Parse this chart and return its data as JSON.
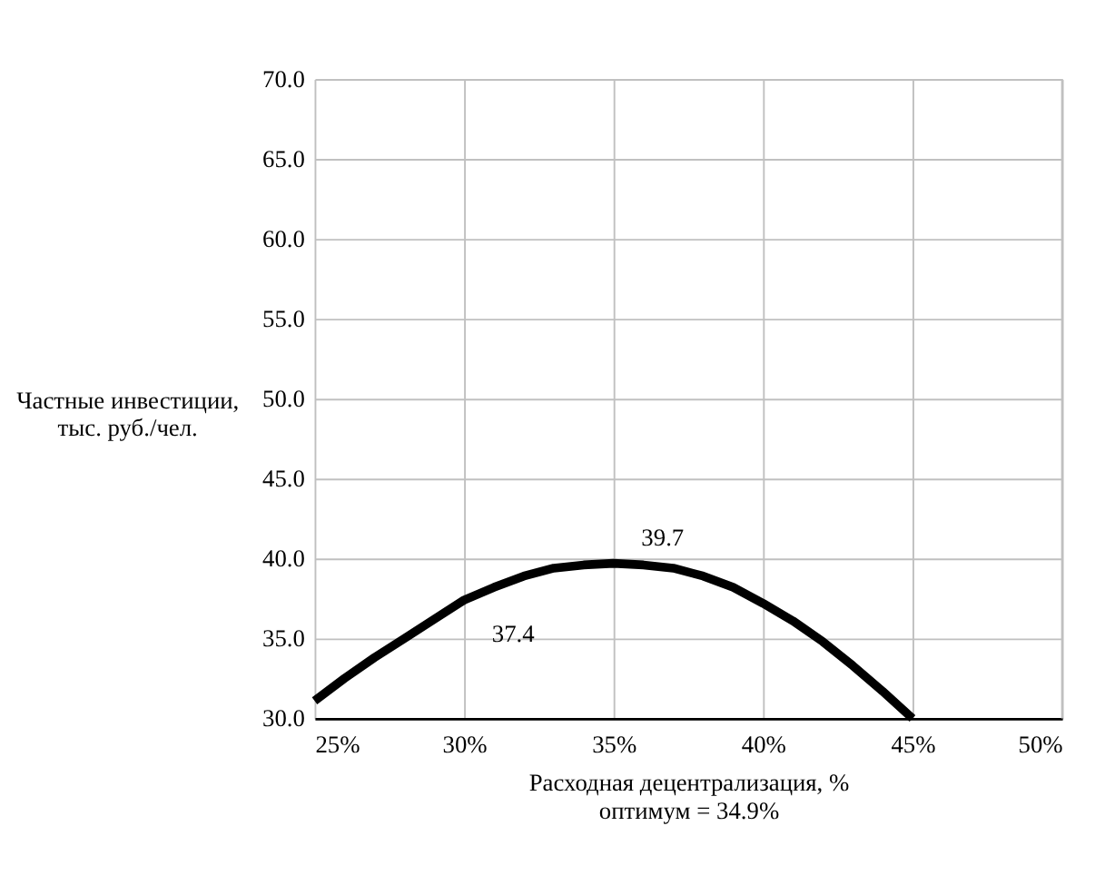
{
  "chart_data": {
    "type": "line",
    "xlabel": "Расходная децентрализация, %",
    "ylabel": "Частные инвестиции, тыс. руб./чел.",
    "x": [
      25,
      26,
      27,
      28,
      29,
      30,
      31,
      32,
      33,
      34,
      35,
      36,
      37,
      38,
      39,
      40,
      41,
      42,
      43,
      44,
      45
    ],
    "series": [
      {
        "color": "#000000",
        "values": [
          31.1,
          32.5,
          33.8,
          35.0,
          36.2,
          37.4,
          38.2,
          38.9,
          39.4,
          39.6,
          39.7,
          39.6,
          39.4,
          38.9,
          38.2,
          37.2,
          36.1,
          34.8,
          33.3,
          31.7,
          30.0
        ]
      }
    ],
    "xlim": [
      25,
      50
    ],
    "xticks": [
      {
        "value": 25,
        "label": "25%"
      },
      {
        "value": 30,
        "label": "30%"
      },
      {
        "value": 35,
        "label": "35%"
      },
      {
        "value": 40,
        "label": "40%"
      },
      {
        "value": 45,
        "label": "45%"
      },
      {
        "value": 50,
        "label": "50%"
      }
    ],
    "ylim": [
      30,
      70
    ],
    "yticks": [
      {
        "value": 30,
        "label": "30.0"
      },
      {
        "value": 35,
        "label": "35.0"
      },
      {
        "value": 40,
        "label": "40.0"
      },
      {
        "value": 45,
        "label": "45.0"
      },
      {
        "value": 50,
        "label": "50.0"
      },
      {
        "value": 55,
        "label": "55.0"
      },
      {
        "value": 60,
        "label": "60.0"
      },
      {
        "value": 65,
        "label": "65.0"
      },
      {
        "value": 70,
        "label": "70.0"
      }
    ],
    "annotations": [
      {
        "text": "37.4",
        "x": 30,
        "y": 37.4
      },
      {
        "text": "39.7",
        "x": 35,
        "y": 39.7
      },
      "оптимум = 34.9%"
    ],
    "grid": true,
    "line_style": "solid",
    "marker": "none"
  }
}
